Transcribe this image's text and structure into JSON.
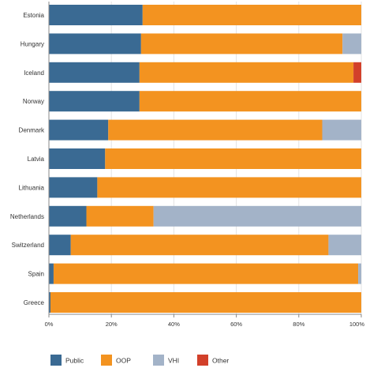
{
  "chart_data": {
    "type": "bar",
    "orientation": "horizontal",
    "stacked": true,
    "categories": [
      "Estonia",
      "Hungary",
      "Iceland",
      "Norway",
      "Denmark",
      "Latvia",
      "Lithuania",
      "Netherlands",
      "Switzerland",
      "Spain",
      "Greece"
    ],
    "series": [
      {
        "name": "Public",
        "color": "#3a6a93",
        "values": [
          30,
          29.5,
          29,
          29,
          19,
          18,
          15.5,
          12,
          7,
          1.5,
          0.5
        ]
      },
      {
        "name": "OOP",
        "color": "#f39320",
        "values": [
          70,
          64.5,
          68.5,
          71,
          68.5,
          82,
          84.5,
          21.5,
          82.5,
          97.5,
          99.5
        ]
      },
      {
        "name": "VHI",
        "color": "#a3b3c8",
        "values": [
          0,
          6,
          0,
          0,
          12.5,
          0,
          0,
          66.5,
          10.5,
          1,
          0
        ]
      },
      {
        "name": "Other",
        "color": "#d2402a",
        "values": [
          0,
          0,
          2.5,
          0,
          0,
          0,
          0,
          0,
          0,
          0,
          0
        ]
      }
    ],
    "xlim": [
      0,
      100
    ],
    "x_ticks": [
      "0%",
      "20%",
      "40%",
      "60%",
      "80%",
      "100%"
    ],
    "xlabel": "",
    "ylabel": "",
    "grid": true,
    "legend_position": "bottom"
  }
}
